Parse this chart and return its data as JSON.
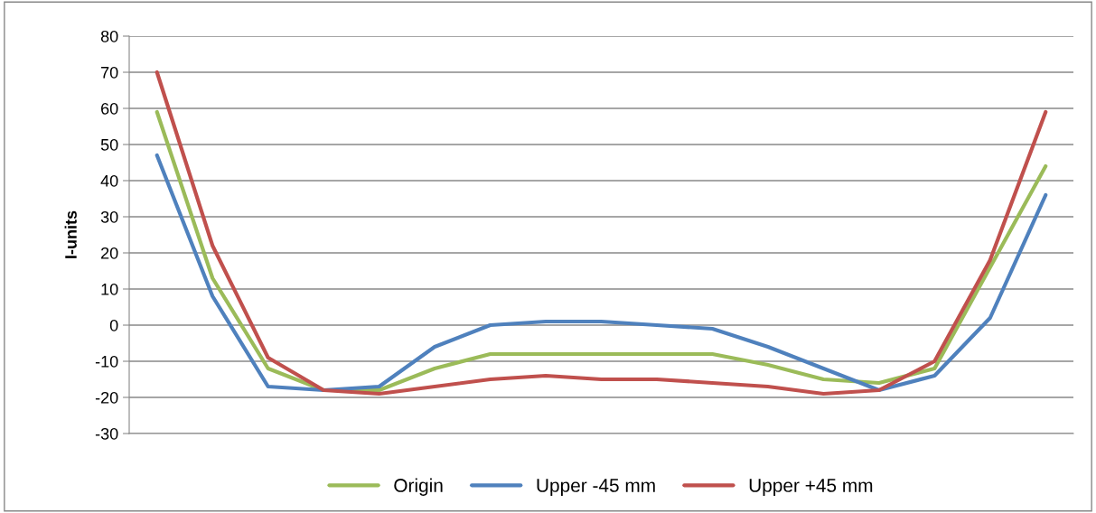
{
  "chart_data": {
    "type": "line",
    "ylabel": "I-units",
    "categories": [
      null,
      null,
      null,
      null,
      null,
      null,
      null,
      null,
      null,
      null,
      null,
      null,
      null,
      null,
      null,
      null,
      null
    ],
    "series": [
      {
        "name": "Origin",
        "color": "#9bbb59",
        "values": [
          59,
          13,
          -12,
          -18,
          -18,
          -12,
          -8,
          -8,
          -8,
          -8,
          -8,
          -11,
          -15,
          -16,
          -12,
          16,
          44
        ]
      },
      {
        "name": "Upper -45 mm",
        "color": "#4f81bd",
        "values": [
          47,
          8,
          -17,
          -18,
          -17,
          -6,
          0,
          1,
          1,
          0,
          -1,
          -6,
          -12,
          -18,
          -14,
          2,
          36
        ]
      },
      {
        "name": "Upper +45 mm",
        "color": "#c0504d",
        "values": [
          70,
          22,
          -9,
          -18,
          -19,
          -17,
          -15,
          -14,
          -15,
          -15,
          -16,
          -17,
          -19,
          -18,
          -10,
          18,
          59
        ]
      }
    ],
    "ylim": [
      -30,
      80
    ],
    "yticks": [
      -30,
      -20,
      -10,
      0,
      10,
      20,
      30,
      40,
      50,
      60,
      70,
      80
    ],
    "grid": "y",
    "legend": "bottom",
    "tick_labels": "y",
    "marker": "none",
    "line_style": "solid"
  }
}
